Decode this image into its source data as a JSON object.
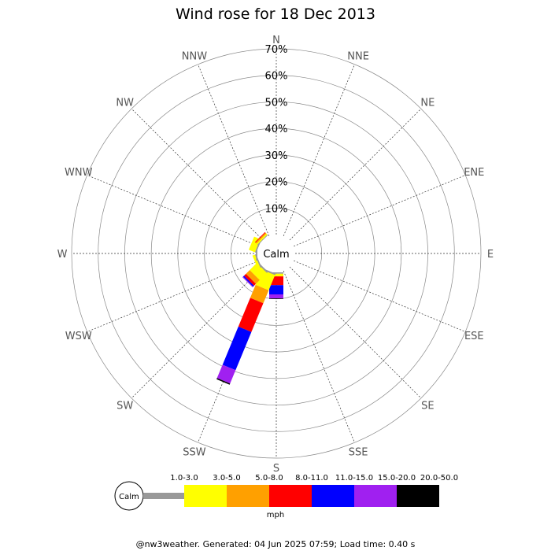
{
  "chart_data": {
    "type": "wind-rose",
    "title": "Wind rose for 18 Dec 2013",
    "directions": [
      "N",
      "NNE",
      "NE",
      "ENE",
      "E",
      "ESE",
      "SE",
      "SSE",
      "S",
      "SSW",
      "SW",
      "WSW",
      "W",
      "WNW",
      "NW",
      "NNW"
    ],
    "radial_ticks": [
      "10%",
      "20%",
      "30%",
      "40%",
      "50%",
      "60%",
      "70%"
    ],
    "radial_max": 70,
    "calm_label": "Calm",
    "speed_bins": [
      {
        "label": "1.0-3.0",
        "color": "#999999"
      },
      {
        "label": "3.0-5.0",
        "color": "#ffff00"
      },
      {
        "label": "5.0-8.0",
        "color": "#ffa000"
      },
      {
        "label": "8.0-11.0",
        "color": "#ff0000"
      },
      {
        "label": "11.0-15.0",
        "color": "#0000ff"
      },
      {
        "label": "15.0-20.0",
        "color": "#a020f0"
      },
      {
        "label": "20.0-50.0",
        "color": "#000000"
      }
    ],
    "unit": "mph",
    "series_percent": {
      "N": [
        0,
        0,
        0,
        0,
        0,
        0,
        0
      ],
      "NNE": [
        0,
        0,
        0,
        0,
        0,
        0,
        0
      ],
      "NE": [
        0,
        0,
        0,
        0,
        0,
        0,
        0
      ],
      "ENE": [
        0,
        0,
        0,
        0,
        0,
        0,
        0
      ],
      "E": [
        0,
        0,
        0,
        0,
        0,
        0,
        0
      ],
      "ESE": [
        0,
        0,
        0,
        0,
        0,
        0,
        0
      ],
      "SE": [
        0,
        0,
        0,
        0,
        0,
        0,
        0
      ],
      "SSE": [
        0,
        0,
        0,
        0,
        0,
        0,
        0
      ],
      "S": [
        0.5,
        1,
        0,
        3.3,
        3.5,
        1.5,
        0.2
      ],
      "SSW": [
        0.6,
        6.2,
        5.3,
        11.7,
        15.6,
        5.4,
        0.5
      ],
      "SW": [
        0.6,
        3.8,
        2.0,
        1.0,
        0.5,
        0.3,
        0
      ],
      "WSW": [
        0.5,
        1.0,
        0,
        0,
        0,
        0,
        0
      ],
      "W": [
        0.5,
        0,
        0,
        0,
        0,
        0,
        0
      ],
      "WNW": [
        0.5,
        2.5,
        0,
        0,
        0,
        0,
        0
      ],
      "NW": [
        0.3,
        0.5,
        0.5,
        0.3,
        0,
        0,
        0
      ],
      "NNW": [
        0,
        0,
        0,
        0,
        0,
        0,
        0
      ]
    }
  },
  "footer": "@nw3weather. Generated: 04 Jun 2025 07:59; Load time: 0.40 s"
}
